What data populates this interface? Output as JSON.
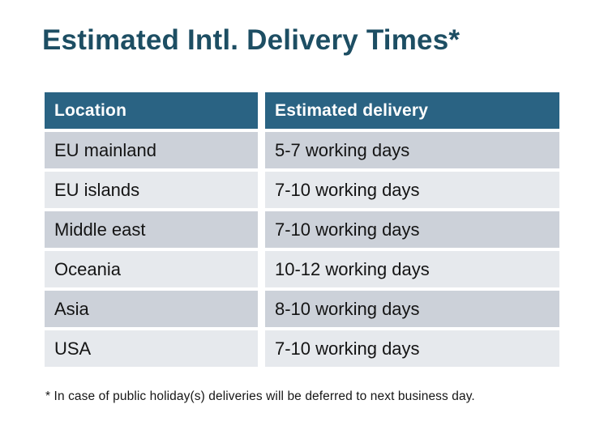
{
  "chart_data": {
    "type": "table",
    "title": "Estimated Intl. Delivery Times*",
    "columns": [
      "Location",
      "Estimated delivery"
    ],
    "rows": [
      [
        "EU mainland",
        "5-7 working days"
      ],
      [
        "EU islands",
        "7-10 working days"
      ],
      [
        "Middle east",
        "7-10 working days"
      ],
      [
        "Oceania",
        "10-12 working days"
      ],
      [
        "Asia",
        "8-10 working days"
      ],
      [
        "USA",
        "7-10 working days"
      ]
    ],
    "footnote": "* In case of public holiday(s) deliveries will be deferred to next business day.",
    "layout_hints": {
      "header_style": "solid teal band, white bold text",
      "row_striping": "dark gray / light gray alternating, starting dark",
      "grid": "white gaps between all cells, no borders"
    }
  },
  "colors": {
    "header_bg": "#2a6383",
    "header_text": "#ffffff",
    "row_dark_bg": "#ccd1d9",
    "row_light_bg": "#e6e9ed",
    "title_text": "#1d4e63",
    "body_text": "#141414",
    "background": "#ffffff"
  }
}
